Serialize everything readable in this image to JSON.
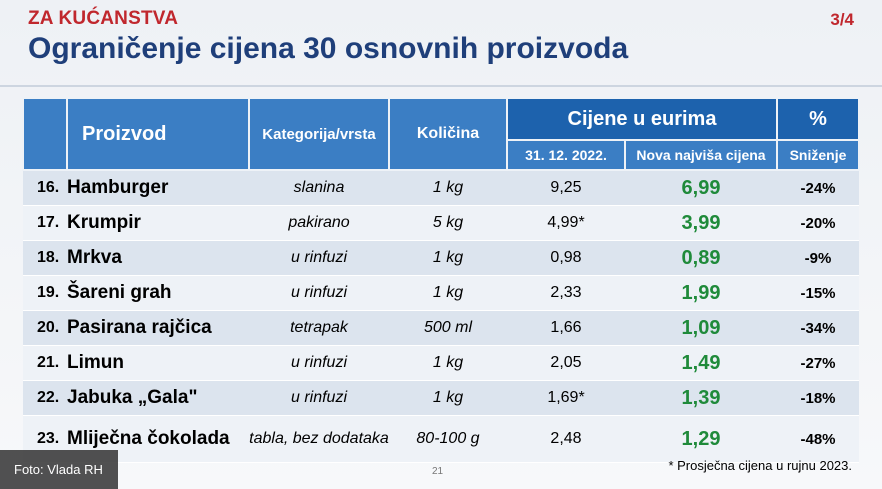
{
  "header": {
    "section": "ZA KUĆANSTVA",
    "page": "3/4",
    "title": "Ograničenje cijena 30 osnovnih proizvoda"
  },
  "table": {
    "col_product": "Proizvod",
    "col_category": "Kategorija/vrsta",
    "col_quantity": "Količina",
    "col_prices": "Cijene u eurima",
    "col_percent": "%",
    "col_old_price": "31. 12. 2022.",
    "col_new_price": "Nova najviša cijena",
    "col_discount": "Sniženje",
    "rows": [
      {
        "num": "16.",
        "name": "Hamburger",
        "category": "slanina",
        "quantity": "1 kg",
        "old": "9,25",
        "new": "6,99",
        "discount": "-24%"
      },
      {
        "num": "17.",
        "name": "Krumpir",
        "category": "pakirano",
        "quantity": "5 kg",
        "old": "4,99*",
        "new": "3,99",
        "discount": "-20%"
      },
      {
        "num": "18.",
        "name": "Mrkva",
        "category": "u rinfuzi",
        "quantity": "1 kg",
        "old": "0,98",
        "new": "0,89",
        "discount": "-9%"
      },
      {
        "num": "19.",
        "name": "Šareni grah",
        "category": "u rinfuzi",
        "quantity": "1 kg",
        "old": "2,33",
        "new": "1,99",
        "discount": "-15%"
      },
      {
        "num": "20.",
        "name": "Pasirana rajčica",
        "category": "tetrapak",
        "quantity": "500 ml",
        "old": "1,66",
        "new": "1,09",
        "discount": "-34%"
      },
      {
        "num": "21.",
        "name": "Limun",
        "category": "u rinfuzi",
        "quantity": "1 kg",
        "old": "2,05",
        "new": "1,49",
        "discount": "-27%"
      },
      {
        "num": "22.",
        "name": "Jabuka „Gala\"",
        "category": "u rinfuzi",
        "quantity": "1 kg",
        "old": "1,69*",
        "new": "1,39",
        "discount": "-18%"
      },
      {
        "num": "23.",
        "name": "Mliječna čokolada",
        "category": "tabla, bez dodataka",
        "quantity": "80-100 g",
        "old": "2,48",
        "new": "1,29",
        "discount": "-48%"
      }
    ]
  },
  "footnote": "* Prosječna cijena u rujnu 2023.",
  "slide_number": "21",
  "photo_credit": "Foto: Vlada RH"
}
